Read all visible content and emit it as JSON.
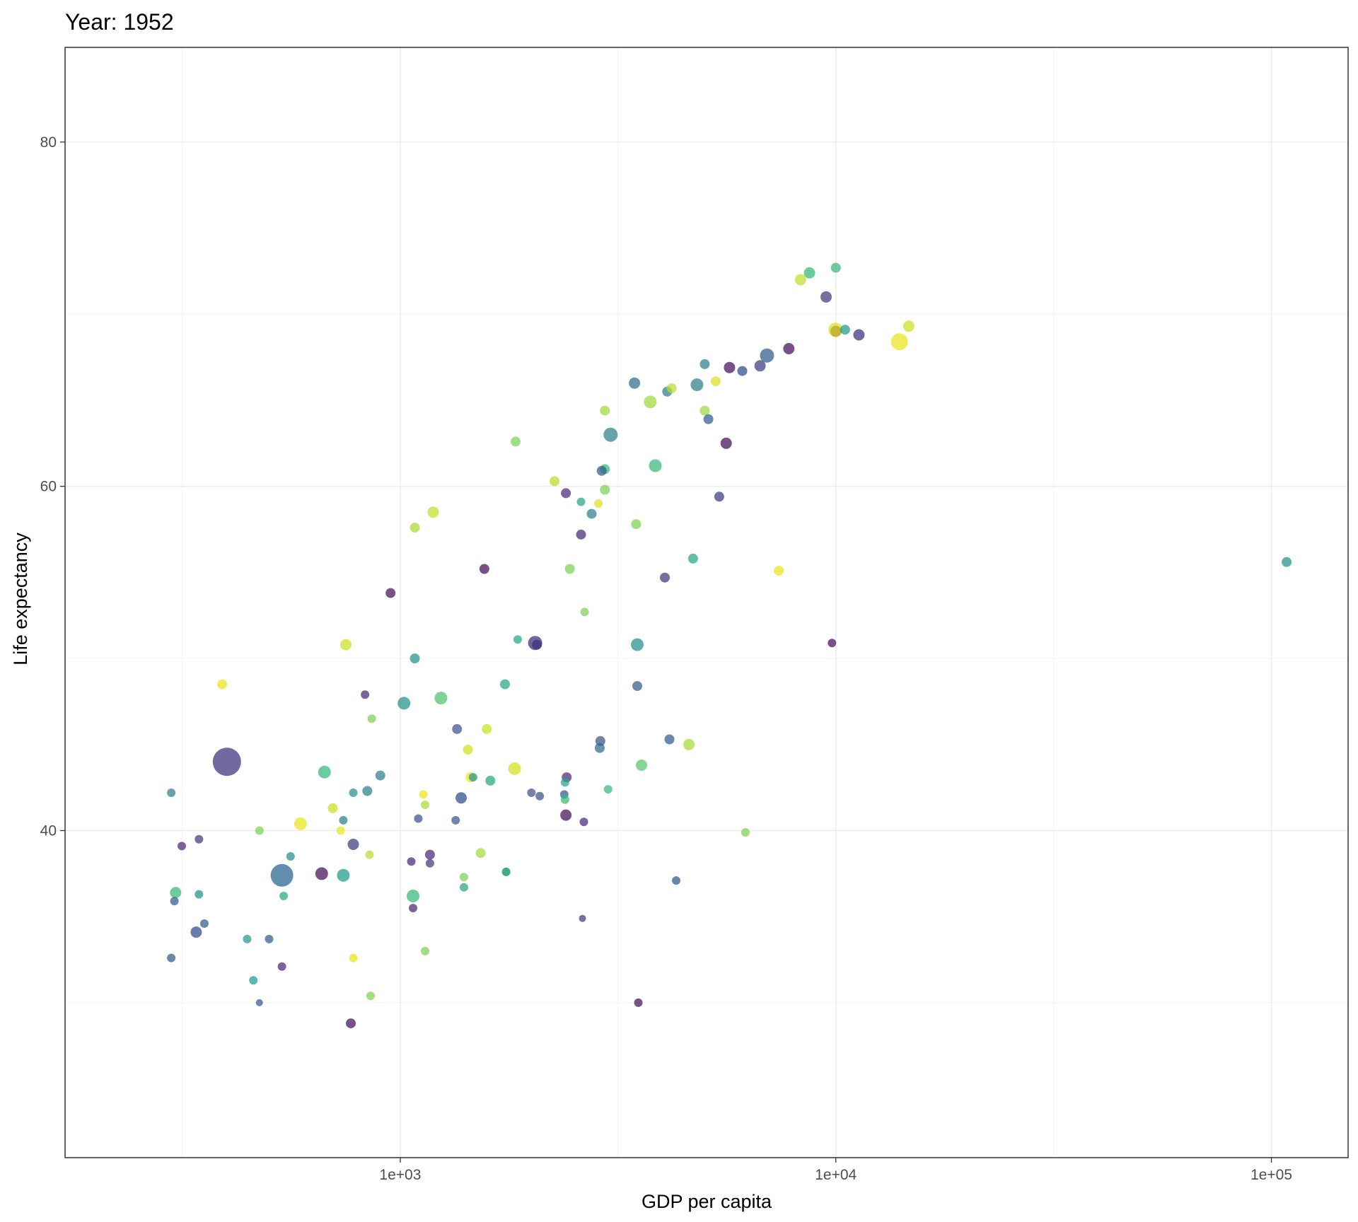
{
  "chart_data": {
    "type": "scatter",
    "title": "Year: 1952",
    "xlabel": "GDP per capita",
    "ylabel": "Life expectancy",
    "x_scale": "log10",
    "xlim": [
      170,
      150000
    ],
    "ylim": [
      21,
      85.5
    ],
    "x_ticks": [
      1000,
      10000,
      100000
    ],
    "x_tick_labels": [
      "1e+03",
      "1e+04",
      "1e+05"
    ],
    "x_minor": [
      316,
      3162,
      31623
    ],
    "y_ticks": [
      40,
      60,
      80
    ],
    "y_tick_labels": [
      "40",
      "60",
      "80"
    ],
    "y_minor": [
      30,
      50,
      70
    ],
    "grid": true,
    "legend": "none",
    "point_opacity": 0.72,
    "size_legend_note": "point size proportional to population (relative scale)",
    "points": [
      {
        "x": 400,
        "y": 44.0,
        "s": 10,
        "c": "#3d2f7c"
      },
      {
        "x": 535,
        "y": 37.4,
        "s": 8,
        "c": "#26638f"
      },
      {
        "x": 14000,
        "y": 68.4,
        "s": 6,
        "c": "#e8e419"
      },
      {
        "x": 6950,
        "y": 67.6,
        "s": 5,
        "c": "#2f5b8c"
      },
      {
        "x": 3040,
        "y": 63.0,
        "s": 5,
        "c": "#2e7f8e"
      },
      {
        "x": 9980,
        "y": 69.1,
        "s": 5,
        "c": "#e2dd1f"
      },
      {
        "x": 2040,
        "y": 50.9,
        "s": 5,
        "c": "#3b2a74"
      },
      {
        "x": 660,
        "y": 37.5,
        "s": 4.5,
        "c": "#440e5a"
      },
      {
        "x": 740,
        "y": 37.4,
        "s": 4.5,
        "c": "#1f9a89"
      },
      {
        "x": 4800,
        "y": 65.9,
        "s": 4.5,
        "c": "#2e7f8e"
      },
      {
        "x": 3750,
        "y": 64.9,
        "s": 4.5,
        "c": "#9ed93b"
      },
      {
        "x": 3850,
        "y": 61.2,
        "s": 4.5,
        "c": "#35b779"
      },
      {
        "x": 1830,
        "y": 43.6,
        "s": 4.5,
        "c": "#d2e21b"
      },
      {
        "x": 670,
        "y": 43.4,
        "s": 4.5,
        "c": "#35b779"
      },
      {
        "x": 590,
        "y": 40.4,
        "s": 4.5,
        "c": "#e8e419"
      },
      {
        "x": 3500,
        "y": 50.8,
        "s": 4.5,
        "c": "#22908c"
      },
      {
        "x": 1240,
        "y": 47.7,
        "s": 4.5,
        "c": "#4cc26c"
      },
      {
        "x": 1020,
        "y": 47.4,
        "s": 4.5,
        "c": "#22908c"
      },
      {
        "x": 1070,
        "y": 36.2,
        "s": 4.5,
        "c": "#35b779"
      },
      {
        "x": 11300,
        "y": 68.8,
        "s": 4,
        "c": "#3d2f7c"
      },
      {
        "x": 10000,
        "y": 69.0,
        "s": 4,
        "c": "#b5a32a"
      },
      {
        "x": 2400,
        "y": 40.9,
        "s": 4,
        "c": "#440e5a"
      },
      {
        "x": 5600,
        "y": 62.5,
        "s": 4,
        "c": "#440e5a"
      },
      {
        "x": 1380,
        "y": 41.9,
        "s": 4,
        "c": "#2f4b8a"
      },
      {
        "x": 780,
        "y": 39.2,
        "s": 4,
        "c": "#3b3a7a"
      },
      {
        "x": 340,
        "y": 34.1,
        "s": 4,
        "c": "#2f4b8a"
      },
      {
        "x": 305,
        "y": 36.4,
        "s": 4,
        "c": "#35b779"
      },
      {
        "x": 1190,
        "y": 58.5,
        "s": 4,
        "c": "#c0de2a"
      },
      {
        "x": 750,
        "y": 50.8,
        "s": 4,
        "c": "#c9e020"
      },
      {
        "x": 4600,
        "y": 45.0,
        "s": 4,
        "c": "#a6db36"
      },
      {
        "x": 3580,
        "y": 43.8,
        "s": 4,
        "c": "#55c667"
      },
      {
        "x": 3450,
        "y": 66.0,
        "s": 4,
        "c": "#2e6c8e"
      },
      {
        "x": 7800,
        "y": 68.0,
        "s": 4,
        "c": "#440e5a"
      },
      {
        "x": 9500,
        "y": 71.0,
        "s": 4,
        "c": "#3b3a7a"
      },
      {
        "x": 8700,
        "y": 72.4,
        "s": 4,
        "c": "#35b779"
      },
      {
        "x": 8300,
        "y": 72.0,
        "s": 4,
        "c": "#c0de2a"
      },
      {
        "x": 10000,
        "y": 72.7,
        "s": 3.5,
        "c": "#35b779"
      },
      {
        "x": 14700,
        "y": 69.3,
        "s": 4,
        "c": "#c9e020"
      },
      {
        "x": 10500,
        "y": 69.1,
        "s": 3.5,
        "c": "#1f9a89"
      },
      {
        "x": 6700,
        "y": 67.0,
        "s": 4,
        "c": "#3b3a7a"
      },
      {
        "x": 5700,
        "y": 66.9,
        "s": 4,
        "c": "#440e5a"
      },
      {
        "x": 6100,
        "y": 66.7,
        "s": 3.5,
        "c": "#2f4b8a"
      },
      {
        "x": 5000,
        "y": 67.1,
        "s": 3.5,
        "c": "#2e7f8e"
      },
      {
        "x": 5300,
        "y": 66.1,
        "s": 3.5,
        "c": "#e2dd1f"
      },
      {
        "x": 4100,
        "y": 65.5,
        "s": 3.5,
        "c": "#2e7f8e"
      },
      {
        "x": 4200,
        "y": 65.7,
        "s": 3.5,
        "c": "#b8de29"
      },
      {
        "x": 2950,
        "y": 64.4,
        "s": 3.5,
        "c": "#9ed93b"
      },
      {
        "x": 5000,
        "y": 64.4,
        "s": 3.5,
        "c": "#9ed93b"
      },
      {
        "x": 5100,
        "y": 63.9,
        "s": 3.5,
        "c": "#2f5b8c"
      },
      {
        "x": 1840,
        "y": 62.6,
        "s": 3.5,
        "c": "#7ad151"
      },
      {
        "x": 2950,
        "y": 61.0,
        "s": 3.5,
        "c": "#35b779"
      },
      {
        "x": 2900,
        "y": 60.9,
        "s": 3.5,
        "c": "#2f5b8c"
      },
      {
        "x": 2260,
        "y": 60.3,
        "s": 3.5,
        "c": "#b8de29"
      },
      {
        "x": 2400,
        "y": 59.6,
        "s": 3.5,
        "c": "#482878"
      },
      {
        "x": 2950,
        "y": 59.8,
        "s": 3.5,
        "c": "#7ad151"
      },
      {
        "x": 2600,
        "y": 59.1,
        "s": 3,
        "c": "#22a884"
      },
      {
        "x": 2850,
        "y": 59.0,
        "s": 3,
        "c": "#e2dd1f"
      },
      {
        "x": 5400,
        "y": 59.4,
        "s": 3.5,
        "c": "#3b3a7a"
      },
      {
        "x": 2750,
        "y": 58.4,
        "s": 3.5,
        "c": "#2e7f8e"
      },
      {
        "x": 3480,
        "y": 57.8,
        "s": 3.5,
        "c": "#7ad151"
      },
      {
        "x": 1080,
        "y": 57.6,
        "s": 3.5,
        "c": "#a6db36"
      },
      {
        "x": 2600,
        "y": 57.2,
        "s": 3.5,
        "c": "#482878"
      },
      {
        "x": 4700,
        "y": 55.8,
        "s": 3.5,
        "c": "#22a884"
      },
      {
        "x": 1560,
        "y": 55.2,
        "s": 3.5,
        "c": "#440e5a"
      },
      {
        "x": 2450,
        "y": 55.2,
        "s": 3.5,
        "c": "#7ad151"
      },
      {
        "x": 4050,
        "y": 54.7,
        "s": 3.5,
        "c": "#3b3a7a"
      },
      {
        "x": 7400,
        "y": 55.1,
        "s": 3.5,
        "c": "#e8e419"
      },
      {
        "x": 108400,
        "y": 55.6,
        "s": 3.5,
        "c": "#22908c"
      },
      {
        "x": 950,
        "y": 53.8,
        "s": 3.5,
        "c": "#440e5a"
      },
      {
        "x": 2650,
        "y": 52.7,
        "s": 3,
        "c": "#7ad151"
      },
      {
        "x": 1860,
        "y": 51.1,
        "s": 3,
        "c": "#22a884"
      },
      {
        "x": 2060,
        "y": 50.8,
        "s": 3.5,
        "c": "#3d2f7c"
      },
      {
        "x": 9800,
        "y": 50.9,
        "s": 3,
        "c": "#440e5a"
      },
      {
        "x": 1080,
        "y": 50.0,
        "s": 3.5,
        "c": "#22908c"
      },
      {
        "x": 390,
        "y": 48.5,
        "s": 3.5,
        "c": "#e8e419"
      },
      {
        "x": 1740,
        "y": 48.5,
        "s": 3.5,
        "c": "#22a884"
      },
      {
        "x": 3500,
        "y": 48.4,
        "s": 3.5,
        "c": "#2f5b8c"
      },
      {
        "x": 830,
        "y": 47.9,
        "s": 3,
        "c": "#482878"
      },
      {
        "x": 860,
        "y": 46.5,
        "s": 3,
        "c": "#7ad151"
      },
      {
        "x": 1350,
        "y": 45.9,
        "s": 3.5,
        "c": "#3b528b"
      },
      {
        "x": 1580,
        "y": 45.9,
        "s": 3.5,
        "c": "#c9e020"
      },
      {
        "x": 4150,
        "y": 45.3,
        "s": 3.5,
        "c": "#2f5b8c"
      },
      {
        "x": 2880,
        "y": 45.2,
        "s": 3.5,
        "c": "#3b528b"
      },
      {
        "x": 2870,
        "y": 44.8,
        "s": 3.5,
        "c": "#2e6c8e"
      },
      {
        "x": 1430,
        "y": 44.7,
        "s": 3.5,
        "c": "#d2e21b"
      },
      {
        "x": 1450,
        "y": 43.1,
        "s": 3.5,
        "c": "#e8e419"
      },
      {
        "x": 1470,
        "y": 43.1,
        "s": 3,
        "c": "#1f9a89"
      },
      {
        "x": 1610,
        "y": 42.9,
        "s": 3.5,
        "c": "#22a884"
      },
      {
        "x": 2410,
        "y": 43.1,
        "s": 3.5,
        "c": "#482878"
      },
      {
        "x": 2390,
        "y": 42.8,
        "s": 3,
        "c": "#22a884"
      },
      {
        "x": 900,
        "y": 43.2,
        "s": 3.5,
        "c": "#2e7f8e"
      },
      {
        "x": 840,
        "y": 42.3,
        "s": 3.5,
        "c": "#2e7f8e"
      },
      {
        "x": 780,
        "y": 42.2,
        "s": 3,
        "c": "#22908c"
      },
      {
        "x": 298,
        "y": 42.2,
        "s": 3,
        "c": "#2e7f8e"
      },
      {
        "x": 1130,
        "y": 42.1,
        "s": 3,
        "c": "#e8e419"
      },
      {
        "x": 2000,
        "y": 42.2,
        "s": 3,
        "c": "#3b528b"
      },
      {
        "x": 2090,
        "y": 42.0,
        "s": 3,
        "c": "#3b528b"
      },
      {
        "x": 2380,
        "y": 42.1,
        "s": 3,
        "c": "#2f5b8c"
      },
      {
        "x": 2390,
        "y": 41.8,
        "s": 3,
        "c": "#35b779"
      },
      {
        "x": 3000,
        "y": 42.4,
        "s": 3,
        "c": "#35b779"
      },
      {
        "x": 1140,
        "y": 41.5,
        "s": 3,
        "c": "#a6db36"
      },
      {
        "x": 700,
        "y": 41.3,
        "s": 3.5,
        "c": "#c9e020"
      },
      {
        "x": 1100,
        "y": 40.7,
        "s": 3,
        "c": "#3b528b"
      },
      {
        "x": 740,
        "y": 40.6,
        "s": 3,
        "c": "#2e7f8e"
      },
      {
        "x": 1340,
        "y": 40.6,
        "s": 3,
        "c": "#3b528b"
      },
      {
        "x": 2640,
        "y": 40.5,
        "s": 3,
        "c": "#482878"
      },
      {
        "x": 730,
        "y": 40.0,
        "s": 3,
        "c": "#e8e419"
      },
      {
        "x": 475,
        "y": 40.0,
        "s": 3,
        "c": "#7ad151"
      },
      {
        "x": 6200,
        "y": 39.9,
        "s": 3,
        "c": "#7ad151"
      },
      {
        "x": 345,
        "y": 39.5,
        "s": 3,
        "c": "#3b3a7a"
      },
      {
        "x": 315,
        "y": 39.1,
        "s": 3,
        "c": "#482878"
      },
      {
        "x": 560,
        "y": 38.5,
        "s": 3,
        "c": "#22908c"
      },
      {
        "x": 850,
        "y": 38.6,
        "s": 3,
        "c": "#b8de29"
      },
      {
        "x": 1170,
        "y": 38.6,
        "s": 3.5,
        "c": "#482878"
      },
      {
        "x": 1530,
        "y": 38.7,
        "s": 3.5,
        "c": "#a6db36"
      },
      {
        "x": 1060,
        "y": 38.2,
        "s": 3,
        "c": "#482878"
      },
      {
        "x": 1170,
        "y": 38.1,
        "s": 3,
        "c": "#3b3a7a"
      },
      {
        "x": 1750,
        "y": 37.6,
        "s": 3,
        "c": "#55c667"
      },
      {
        "x": 1750,
        "y": 37.6,
        "s": 3,
        "c": "#1f9a89"
      },
      {
        "x": 1400,
        "y": 37.3,
        "s": 3,
        "c": "#7ad151"
      },
      {
        "x": 1400,
        "y": 36.7,
        "s": 3,
        "c": "#22a884"
      },
      {
        "x": 4300,
        "y": 37.1,
        "s": 3,
        "c": "#2f5b8c"
      },
      {
        "x": 345,
        "y": 36.3,
        "s": 3,
        "c": "#22908c"
      },
      {
        "x": 540,
        "y": 36.2,
        "s": 3,
        "c": "#22a884"
      },
      {
        "x": 303,
        "y": 35.9,
        "s": 3,
        "c": "#2f5b8c"
      },
      {
        "x": 1070,
        "y": 35.5,
        "s": 3,
        "c": "#482878"
      },
      {
        "x": 2620,
        "y": 34.9,
        "s": 2.5,
        "c": "#3b3a7a"
      },
      {
        "x": 355,
        "y": 34.6,
        "s": 3,
        "c": "#2f5b8c"
      },
      {
        "x": 445,
        "y": 33.7,
        "s": 3,
        "c": "#1f9a89"
      },
      {
        "x": 500,
        "y": 33.7,
        "s": 3,
        "c": "#2f5b8c"
      },
      {
        "x": 1140,
        "y": 33.0,
        "s": 3,
        "c": "#7ad151"
      },
      {
        "x": 298,
        "y": 32.6,
        "s": 3,
        "c": "#2f5b8c"
      },
      {
        "x": 780,
        "y": 32.6,
        "s": 3,
        "c": "#e8e419"
      },
      {
        "x": 535,
        "y": 32.1,
        "s": 3,
        "c": "#482878"
      },
      {
        "x": 460,
        "y": 31.3,
        "s": 3,
        "c": "#1f9a89"
      },
      {
        "x": 855,
        "y": 30.4,
        "s": 3,
        "c": "#7ad151"
      },
      {
        "x": 475,
        "y": 30.0,
        "s": 2.5,
        "c": "#2f5b8c"
      },
      {
        "x": 3520,
        "y": 30.0,
        "s": 3,
        "c": "#440e5a"
      },
      {
        "x": 770,
        "y": 28.8,
        "s": 3.5,
        "c": "#440e5a"
      }
    ]
  }
}
